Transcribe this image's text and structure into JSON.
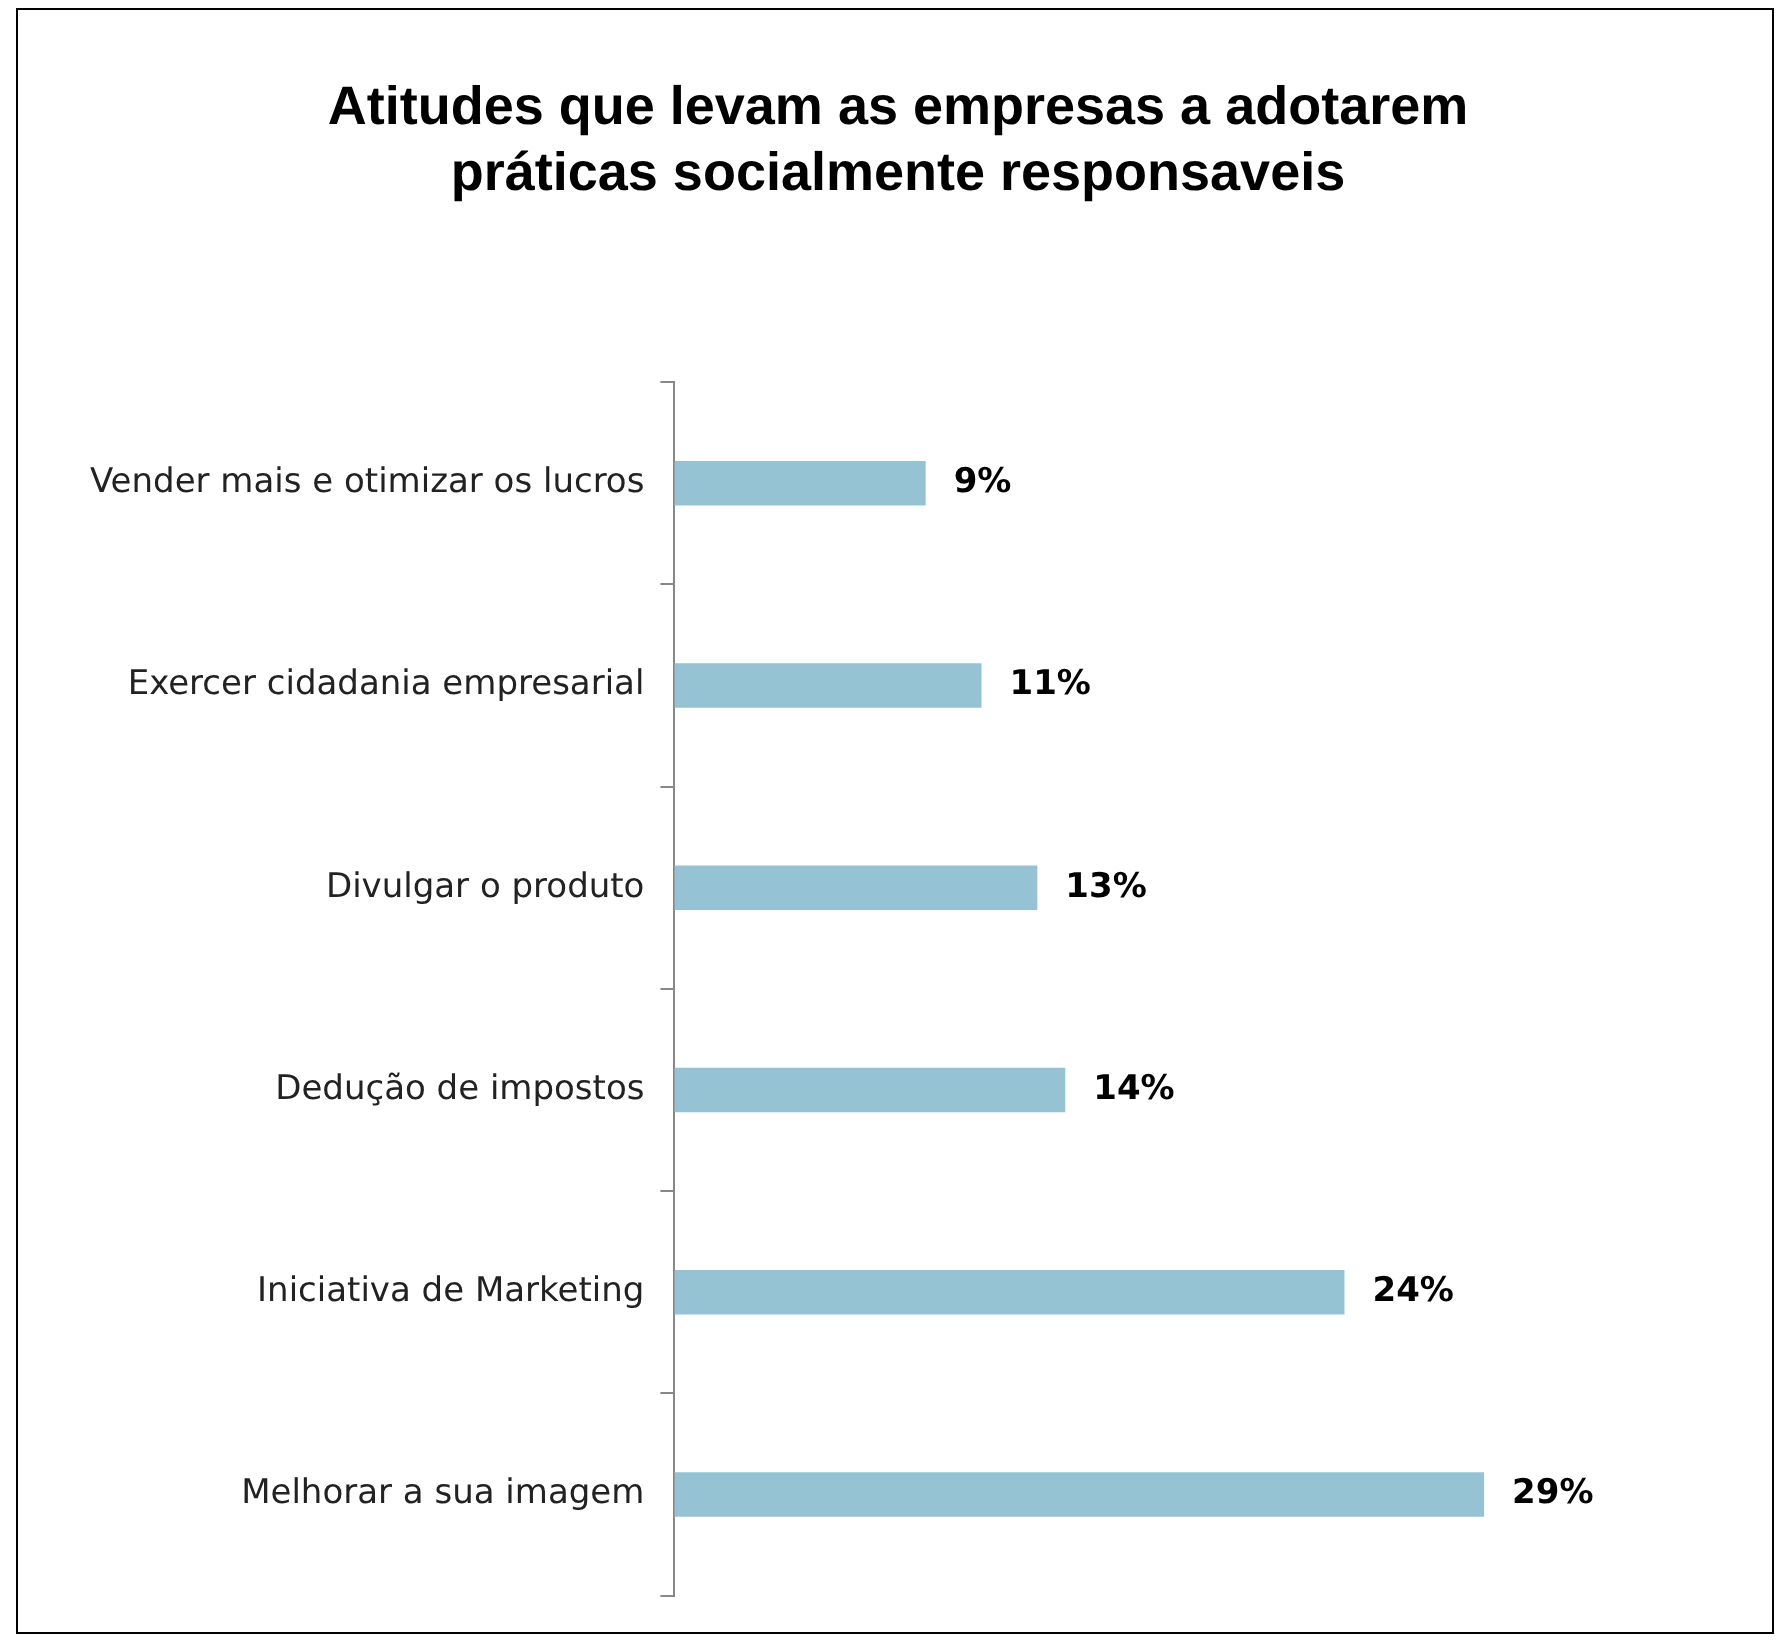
{
  "chart_data": {
    "type": "bar",
    "orientation": "horizontal",
    "title": "Atitudes que levam as empresas a adotarem práticas socialmente responsaveis",
    "categories": [
      "Vender mais e otimizar os lucros",
      "Exercer cidadania empresarial",
      "Divulgar o produto",
      "Dedução de impostos",
      "Iniciativa de Marketing",
      "Melhorar a sua imagem"
    ],
    "values": [
      9,
      11,
      13,
      14,
      24,
      29
    ],
    "value_labels": [
      "9%",
      "11%",
      "13%",
      "14%",
      "24%",
      "29%"
    ],
    "color": "#96c3d3",
    "grid": false,
    "legend": false
  }
}
